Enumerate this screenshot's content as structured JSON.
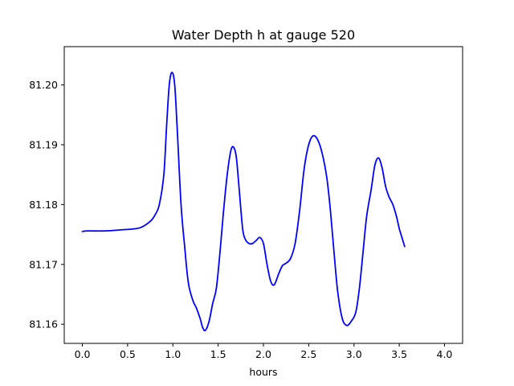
{
  "chart_data": {
    "type": "line",
    "title": "Water Depth h at gauge 520",
    "xlabel": "hours",
    "ylabel": "",
    "xlim": [
      -0.2,
      4.2
    ],
    "ylim": [
      81.1568,
      81.2064
    ],
    "grid": false,
    "x_ticks": [
      0.0,
      0.5,
      1.0,
      1.5,
      2.0,
      2.5,
      3.0,
      3.5,
      4.0
    ],
    "x_tick_labels": [
      "0.0",
      "0.5",
      "1.0",
      "1.5",
      "2.0",
      "2.5",
      "3.0",
      "3.5",
      "4.0"
    ],
    "y_ticks": [
      81.16,
      81.17,
      81.18,
      81.19,
      81.2
    ],
    "y_tick_labels": [
      "81.16",
      "81.17",
      "81.18",
      "81.19",
      "81.20"
    ],
    "series": [
      {
        "color": "#0000ff",
        "points": [
          [
            0.0,
            81.1755
          ],
          [
            0.05,
            81.1756
          ],
          [
            0.25,
            81.1756
          ],
          [
            0.45,
            81.1758
          ],
          [
            0.55,
            81.1759
          ],
          [
            0.65,
            81.1762
          ],
          [
            0.75,
            81.1772
          ],
          [
            0.8,
            81.1782
          ],
          [
            0.85,
            81.18
          ],
          [
            0.9,
            81.185
          ],
          [
            0.93,
            81.193
          ],
          [
            0.96,
            81.2
          ],
          [
            0.99,
            81.2021
          ],
          [
            1.02,
            81.2
          ],
          [
            1.05,
            81.192
          ],
          [
            1.09,
            81.18
          ],
          [
            1.13,
            81.173
          ],
          [
            1.17,
            81.167
          ],
          [
            1.22,
            81.164
          ],
          [
            1.26,
            81.1627
          ],
          [
            1.3,
            81.161
          ],
          [
            1.33,
            81.1594
          ],
          [
            1.36,
            81.159
          ],
          [
            1.4,
            81.1605
          ],
          [
            1.44,
            81.1635
          ],
          [
            1.48,
            81.166
          ],
          [
            1.52,
            81.172
          ],
          [
            1.56,
            81.179
          ],
          [
            1.6,
            81.185
          ],
          [
            1.64,
            81.189
          ],
          [
            1.67,
            81.1896
          ],
          [
            1.7,
            81.188
          ],
          [
            1.73,
            81.183
          ],
          [
            1.77,
            81.176
          ],
          [
            1.8,
            81.1742
          ],
          [
            1.84,
            81.1735
          ],
          [
            1.88,
            81.1735
          ],
          [
            1.92,
            81.174
          ],
          [
            1.96,
            81.1745
          ],
          [
            2.0,
            81.1735
          ],
          [
            2.04,
            81.17
          ],
          [
            2.08,
            81.1672
          ],
          [
            2.12,
            81.1666
          ],
          [
            2.17,
            81.1685
          ],
          [
            2.21,
            81.1698
          ],
          [
            2.25,
            81.1702
          ],
          [
            2.3,
            81.171
          ],
          [
            2.35,
            81.1735
          ],
          [
            2.4,
            81.179
          ],
          [
            2.45,
            81.186
          ],
          [
            2.5,
            81.19
          ],
          [
            2.55,
            81.1915
          ],
          [
            2.6,
            81.1908
          ],
          [
            2.65,
            81.1885
          ],
          [
            2.7,
            81.1845
          ],
          [
            2.74,
            81.179
          ],
          [
            2.78,
            81.172
          ],
          [
            2.82,
            81.1655
          ],
          [
            2.87,
            81.161
          ],
          [
            2.92,
            81.1598
          ],
          [
            2.97,
            81.1605
          ],
          [
            3.02,
            81.162
          ],
          [
            3.06,
            81.166
          ],
          [
            3.1,
            81.172
          ],
          [
            3.14,
            81.178
          ],
          [
            3.19,
            81.1825
          ],
          [
            3.23,
            81.1865
          ],
          [
            3.27,
            81.1878
          ],
          [
            3.31,
            81.1862
          ],
          [
            3.35,
            81.183
          ],
          [
            3.39,
            81.1812
          ],
          [
            3.43,
            81.18
          ],
          [
            3.47,
            81.178
          ],
          [
            3.5,
            81.176
          ],
          [
            3.53,
            81.1745
          ],
          [
            3.56,
            81.173
          ]
        ]
      }
    ]
  }
}
